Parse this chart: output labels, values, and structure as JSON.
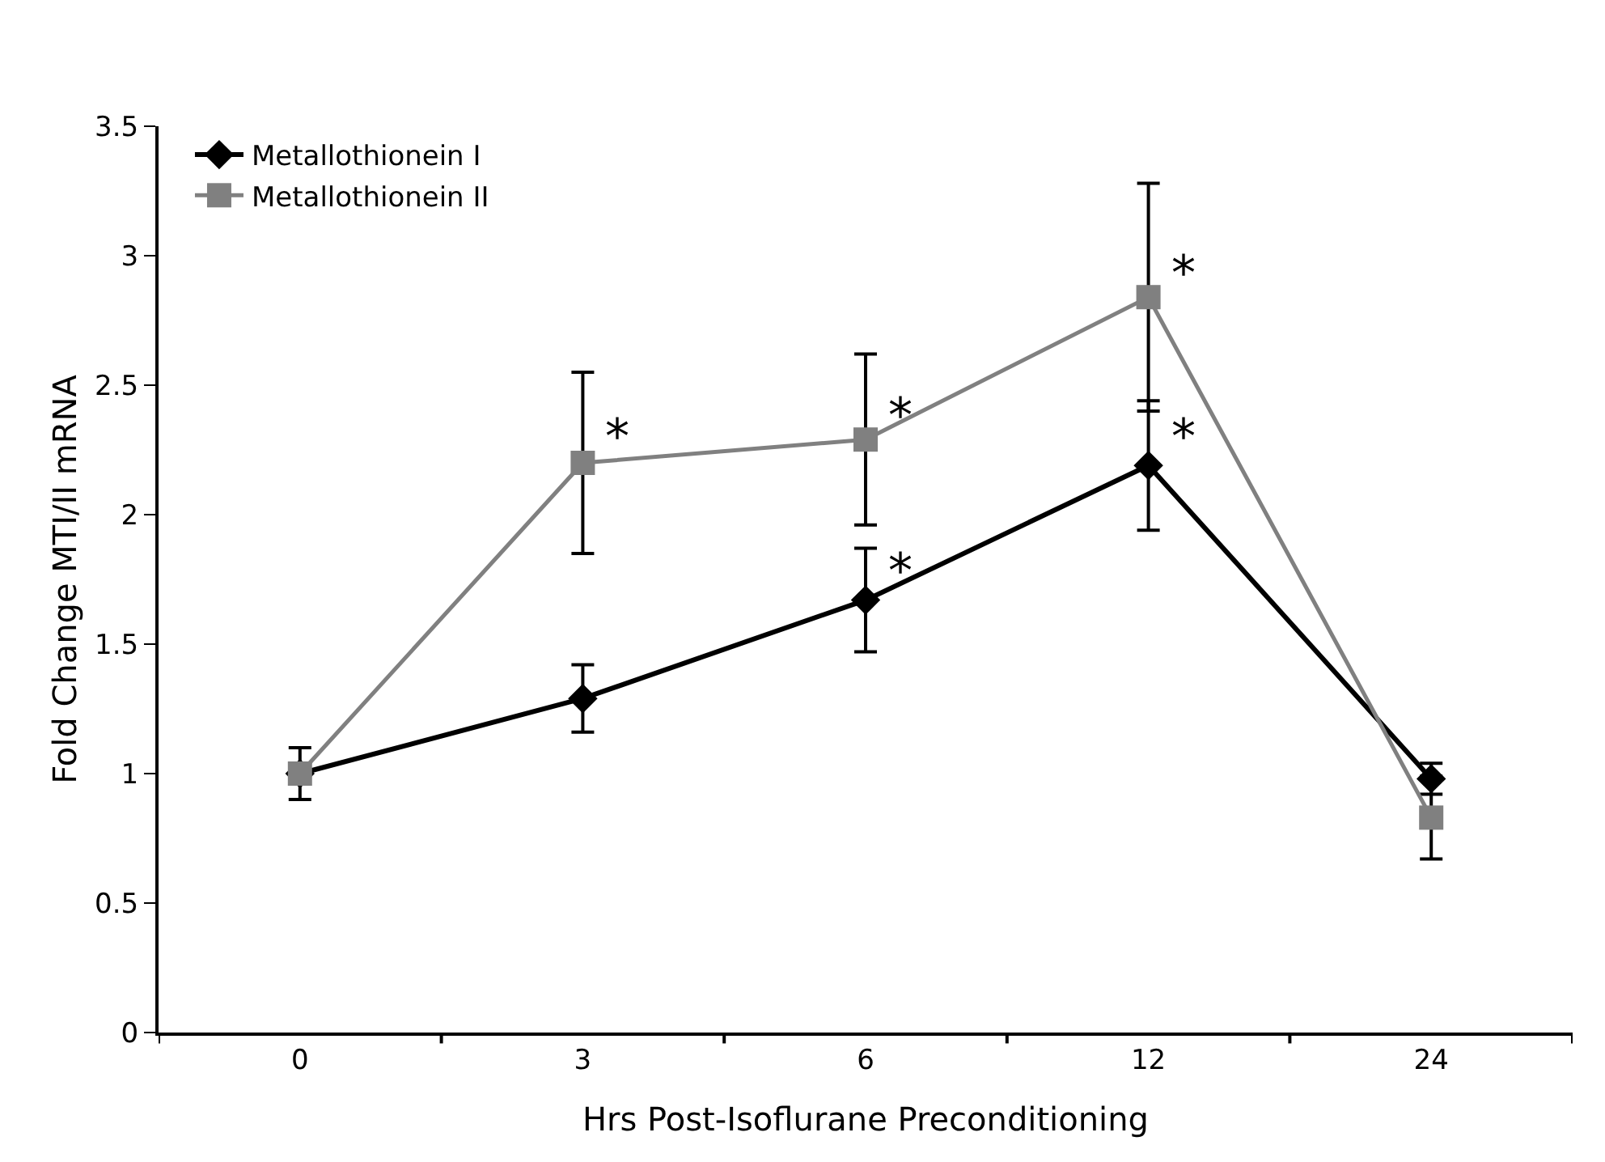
{
  "chart_data": {
    "type": "line",
    "xlabel": "Hrs Post-Isoflurane Preconditioning",
    "ylabel": "Fold Change MTI/II mRNA",
    "categories": [
      "0",
      "3",
      "6",
      "12",
      "24"
    ],
    "series": [
      {
        "name": "Metallothionein I",
        "color": "#000000",
        "marker": "diamond",
        "values": [
          1.0,
          1.29,
          1.67,
          2.19,
          0.98
        ],
        "errors": [
          0.1,
          0.13,
          0.2,
          0.25,
          0.06
        ]
      },
      {
        "name": "Metallothionein II",
        "color": "#808080",
        "marker": "square",
        "values": [
          1.0,
          2.2,
          2.29,
          2.84,
          0.83
        ],
        "errors": [
          null,
          0.35,
          0.33,
          0.44,
          0.16
        ]
      }
    ],
    "annotations": [
      {
        "text": "*",
        "x": "3",
        "y": 2.3
      },
      {
        "text": "*",
        "x": "6",
        "y": 2.38
      },
      {
        "text": "*",
        "x": "12",
        "y": 2.93
      },
      {
        "text": "*",
        "x": "6",
        "y": 1.78
      },
      {
        "text": "*",
        "x": "12",
        "y": 2.3
      }
    ],
    "ylim": [
      0,
      3.5
    ],
    "yticks": [
      0,
      0.5,
      1,
      1.5,
      2,
      2.5,
      3,
      3.5
    ],
    "grid": false,
    "legend": "top left",
    "line_style": "solid"
  }
}
